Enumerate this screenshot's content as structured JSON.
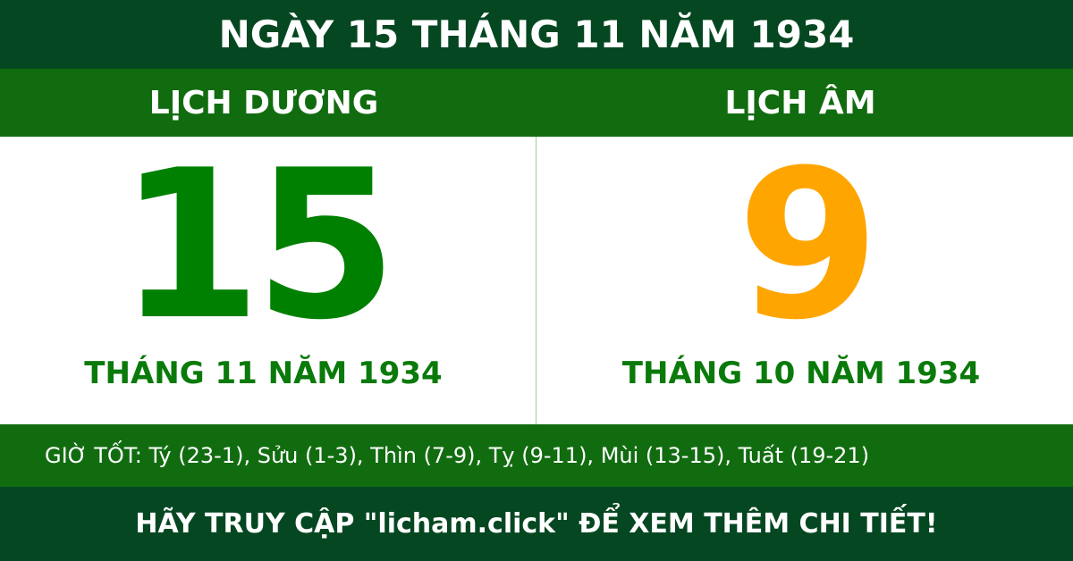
{
  "title": "NGÀY 15 THÁNG 11 NĂM 1934",
  "solar": {
    "heading": "LỊCH DƯƠNG",
    "day": "15",
    "month_year": "THÁNG 11 NĂM 1934"
  },
  "lunar": {
    "heading": "LỊCH ÂM",
    "day": "9",
    "month_year": "THÁNG 10 NĂM 1934"
  },
  "good_hours": "GIỜ TỐT: Tý (23-1), Sửu (1-3), Thìn (7-9), Tỵ (9-11), Mùi (13-15), Tuất (19-21)",
  "footer": "HÃY TRUY CẬP \"licham.click\" ĐỂ XEM THÊM CHI TIẾT!",
  "colors": {
    "dark_green": "#054721",
    "band_green": "#116c10",
    "solar_number": "#008000",
    "lunar_number": "#ffa500"
  }
}
